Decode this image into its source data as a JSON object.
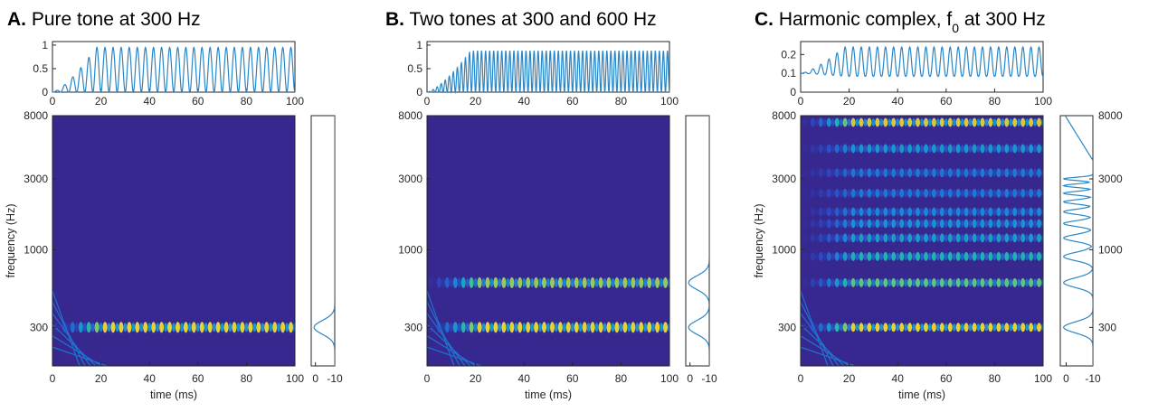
{
  "colors": {
    "line": "#2a86c6",
    "heat_low": "#3a2a9a",
    "heat_mid": "#1fa8b8",
    "heat_high": "#f7e73a"
  },
  "chart_data": [
    {
      "panel": "A",
      "title_letter": "A.",
      "title_text": " Pure tone at 300 Hz",
      "waveform": {
        "type": "line",
        "x_range": [
          0,
          100
        ],
        "y_range": [
          0,
          1
        ],
        "x_ticks": [
          "0",
          "20",
          "40",
          "60",
          "80",
          "100"
        ],
        "y_ticks": [
          "0",
          "0.5",
          "1"
        ],
        "envelope_peak": 0.95,
        "cycles": 30
      },
      "spectrogram": {
        "type": "heatmap",
        "xlabel": "time (ms)",
        "ylabel": "frequency (Hz)",
        "x_range": [
          0,
          100
        ],
        "x_ticks": [
          "0",
          "20",
          "40",
          "60",
          "80",
          "100"
        ],
        "y_ticks": [
          "8000",
          "3000",
          "1000",
          "300"
        ],
        "scale": "log",
        "bands": [
          {
            "freq": 300,
            "strength": 1.0
          }
        ],
        "stripe_cycles": 30
      },
      "profile": {
        "type": "line",
        "x_ticks": [
          "0",
          "-10"
        ],
        "peaks": [
          {
            "freq": 300,
            "width": 0.05
          }
        ]
      }
    },
    {
      "panel": "B",
      "title_letter": "B.",
      "title_text": " Two tones at 300 and 600 Hz",
      "waveform": {
        "type": "line",
        "x_range": [
          0,
          100
        ],
        "y_range": [
          0,
          1
        ],
        "x_ticks": [
          "0",
          "20",
          "40",
          "60",
          "80",
          "100"
        ],
        "y_ticks": [
          "0",
          "0.5",
          "1"
        ],
        "envelope_peak": 0.88,
        "cycles": 60
      },
      "spectrogram": {
        "type": "heatmap",
        "xlabel": "time (ms)",
        "ylabel": "",
        "x_range": [
          0,
          100
        ],
        "x_ticks": [
          "0",
          "20",
          "40",
          "60",
          "80",
          "100"
        ],
        "y_ticks": [
          "8000",
          "3000",
          "1000",
          "300"
        ],
        "scale": "log",
        "bands": [
          {
            "freq": 300,
            "strength": 1.0
          },
          {
            "freq": 600,
            "strength": 0.85
          }
        ],
        "stripe_cycles": 30
      },
      "profile": {
        "type": "line",
        "x_ticks": [
          "0",
          "-10"
        ],
        "peaks": [
          {
            "freq": 300,
            "width": 0.05
          },
          {
            "freq": 600,
            "width": 0.05
          }
        ]
      }
    },
    {
      "panel": "C",
      "title_letter": "C.",
      "title_text": " Harmonic complex, f",
      "title_sub": "0",
      "title_tail": " at 300 Hz",
      "waveform": {
        "type": "line",
        "x_range": [
          0,
          100
        ],
        "y_range": [
          0,
          0.25
        ],
        "x_ticks": [
          "0",
          "20",
          "40",
          "60",
          "80",
          "100"
        ],
        "y_ticks": [
          "0",
          "0.1",
          "0.2"
        ],
        "envelope_peak": 0.24,
        "cycles": 30
      },
      "spectrogram": {
        "type": "heatmap",
        "xlabel": "time (ms)",
        "ylabel": "frequency (Hz)",
        "x_range": [
          0,
          100
        ],
        "x_ticks": [
          "0",
          "20",
          "40",
          "60",
          "80",
          "100"
        ],
        "y_ticks": [
          "8000",
          "3000",
          "1000",
          "300"
        ],
        "scale": "log",
        "bands": [
          {
            "freq": 300,
            "strength": 1.0
          },
          {
            "freq": 600,
            "strength": 0.75
          },
          {
            "freq": 900,
            "strength": 0.6
          },
          {
            "freq": 1200,
            "strength": 0.5
          },
          {
            "freq": 1500,
            "strength": 0.45
          },
          {
            "freq": 1800,
            "strength": 0.4
          },
          {
            "freq": 2400,
            "strength": 0.35
          },
          {
            "freq": 3300,
            "strength": 0.35
          },
          {
            "freq": 4800,
            "strength": 0.45
          },
          {
            "freq": 7200,
            "strength": 0.9
          }
        ],
        "stripe_cycles": 30
      },
      "profile": {
        "type": "line",
        "x_ticks": [
          "0",
          "-10"
        ],
        "y_ticks": [
          "8000",
          "3000",
          "1000",
          "300"
        ],
        "peaks": [
          {
            "freq": 300,
            "width": 0.04
          },
          {
            "freq": 600,
            "width": 0.035
          },
          {
            "freq": 900,
            "width": 0.03
          },
          {
            "freq": 1200,
            "width": 0.025
          },
          {
            "freq": 1500,
            "width": 0.02
          },
          {
            "freq": 1800,
            "width": 0.018
          },
          {
            "freq": 2100,
            "width": 0.015
          },
          {
            "freq": 2400,
            "width": 0.013
          },
          {
            "freq": 2700,
            "width": 0.012
          },
          {
            "freq": 3000,
            "width": 0.011
          }
        ],
        "tail_rise_from": 4000
      }
    }
  ]
}
